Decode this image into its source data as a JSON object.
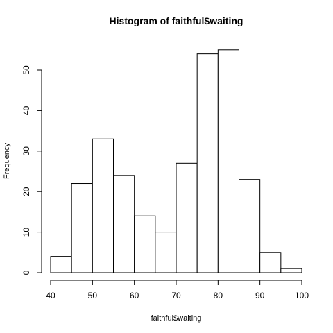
{
  "chart_data": {
    "type": "bar",
    "title": "Histogram of faithful$waiting",
    "xlabel": "faithful$waiting",
    "ylabel": "Frequency",
    "bins": [
      {
        "from": 40,
        "to": 45,
        "count": 4
      },
      {
        "from": 45,
        "to": 50,
        "count": 22
      },
      {
        "from": 50,
        "to": 55,
        "count": 33
      },
      {
        "from": 55,
        "to": 60,
        "count": 24
      },
      {
        "from": 60,
        "to": 65,
        "count": 14
      },
      {
        "from": 65,
        "to": 70,
        "count": 10
      },
      {
        "from": 70,
        "to": 75,
        "count": 27
      },
      {
        "from": 75,
        "to": 80,
        "count": 54
      },
      {
        "from": 80,
        "to": 85,
        "count": 55
      },
      {
        "from": 85,
        "to": 90,
        "count": 23
      },
      {
        "from": 90,
        "to": 95,
        "count": 5
      },
      {
        "from": 95,
        "to": 100,
        "count": 1
      }
    ],
    "xlim": [
      40,
      100
    ],
    "ylim": [
      0,
      55
    ],
    "x_ticks": [
      40,
      50,
      60,
      70,
      80,
      90,
      100
    ],
    "y_ticks": [
      0,
      10,
      20,
      30,
      40,
      50
    ],
    "grid": false,
    "bar_fill": "#ffffff",
    "bar_stroke": "#000000"
  }
}
